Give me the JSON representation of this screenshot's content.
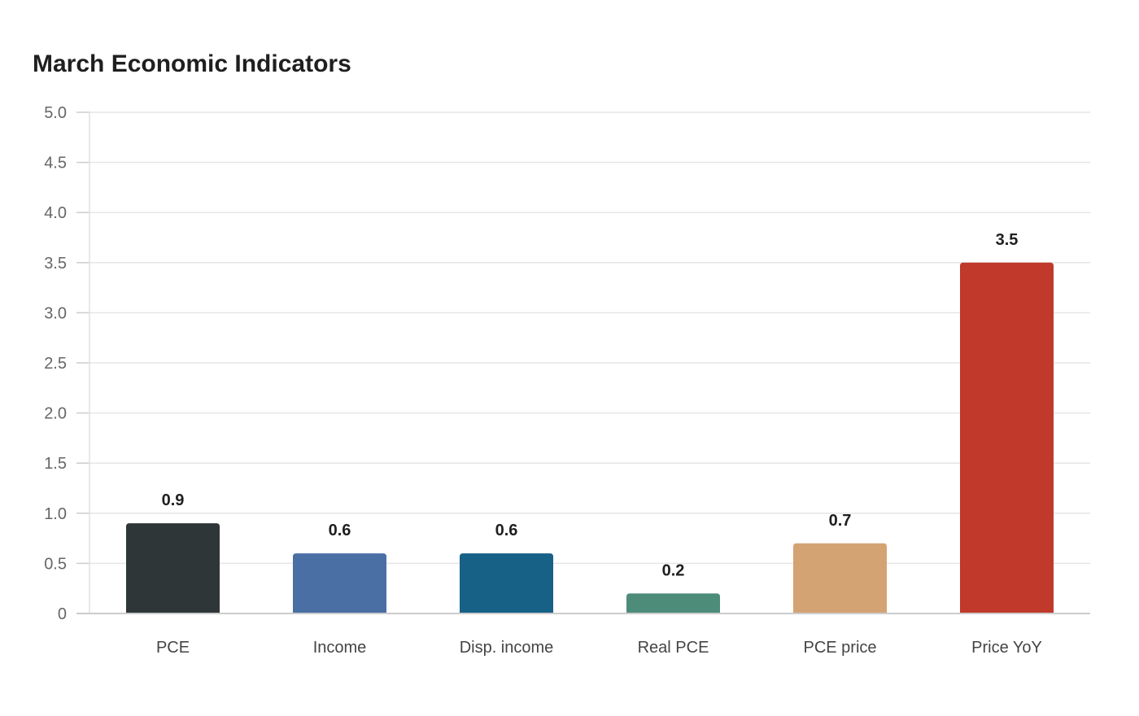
{
  "chart_data": {
    "type": "bar",
    "title": "March Economic Indicators",
    "xlabel": "",
    "ylabel": "",
    "categories": [
      "PCE",
      "Income",
      "Disp. income",
      "Real PCE",
      "PCE price",
      "Price YoY"
    ],
    "values": [
      0.9,
      0.6,
      0.6,
      0.2,
      0.7,
      3.5
    ],
    "data_labels": [
      "0.9",
      "0.6",
      "0.6",
      "0.2",
      "0.7",
      "3.5"
    ],
    "colors": [
      "#2e3638",
      "#4a6fa5",
      "#176086",
      "#4e8c7a",
      "#d4a373",
      "#c0392b"
    ],
    "ylim": [
      0,
      5
    ],
    "yticks": [
      0,
      0.5,
      1.0,
      1.5,
      2.0,
      2.5,
      3.0,
      3.5,
      4.0,
      4.5,
      5.0
    ],
    "ytick_labels": [
      "0",
      "0.5",
      "1.0",
      "1.5",
      "2.0",
      "2.5",
      "3.0",
      "3.5",
      "4.0",
      "4.5",
      "5.0"
    ],
    "grid": true,
    "legend": "none"
  }
}
